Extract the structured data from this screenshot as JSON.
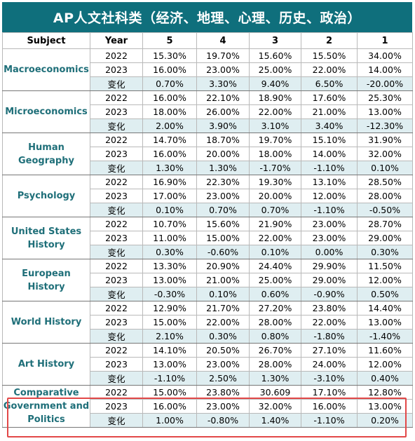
{
  "title": "AP人文社科类（经济、地理、心理、历史、政治）",
  "header": {
    "subject": "Subject",
    "year": "Year",
    "scores": [
      "5",
      "4",
      "3",
      "2",
      "1"
    ]
  },
  "highlight_color": "#e24848",
  "title_bg": "#0f6f7c",
  "subjects": [
    {
      "name": "Macroeconomics",
      "rows": [
        {
          "label": "2022",
          "values": [
            "15.30%",
            "19.70%",
            "15.60%",
            "15.50%",
            "34.00%"
          ]
        },
        {
          "label": "2023",
          "values": [
            "16.00%",
            "23.00%",
            "25.00%",
            "22.00%",
            "14.00%"
          ]
        },
        {
          "label": "变化",
          "values": [
            "0.70%",
            "3.30%",
            "9.40%",
            "6.50%",
            "-20.00%"
          ]
        }
      ]
    },
    {
      "name": "Microeconomics",
      "rows": [
        {
          "label": "2022",
          "values": [
            "16.00%",
            "22.10%",
            "18.90%",
            "17.60%",
            "25.30%"
          ]
        },
        {
          "label": "2023",
          "values": [
            "18.00%",
            "26.00%",
            "22.00%",
            "21.00%",
            "13.00%"
          ]
        },
        {
          "label": "变化",
          "values": [
            "2.00%",
            "3.90%",
            "3.10%",
            "3.40%",
            "-12.30%"
          ]
        }
      ]
    },
    {
      "name": "Human Geography",
      "rows": [
        {
          "label": "2022",
          "values": [
            "14.70%",
            "18.70%",
            "19.70%",
            "15.10%",
            "31.90%"
          ]
        },
        {
          "label": "2023",
          "values": [
            "16.00%",
            "20.00%",
            "18.00%",
            "14.00%",
            "32.00%"
          ]
        },
        {
          "label": "变化",
          "values": [
            "1.30%",
            "1.30%",
            "-1.70%",
            "-1.10%",
            "0.10%"
          ]
        }
      ]
    },
    {
      "name": "Psychology",
      "rows": [
        {
          "label": "2022",
          "values": [
            "16.90%",
            "22.30%",
            "19.30%",
            "13.10%",
            "28.50%"
          ]
        },
        {
          "label": "2023",
          "values": [
            "17.00%",
            "23.00%",
            "20.00%",
            "12.00%",
            "28.00%"
          ]
        },
        {
          "label": "变化",
          "values": [
            "0.10%",
            "0.70%",
            "0.70%",
            "-1.10%",
            "-0.50%"
          ]
        }
      ]
    },
    {
      "name": "United States History",
      "rows": [
        {
          "label": "2022",
          "values": [
            "10.70%",
            "15.60%",
            "21.90%",
            "23.00%",
            "28.70%"
          ]
        },
        {
          "label": "2023",
          "values": [
            "11.00%",
            "15.00%",
            "22.00%",
            "23.00%",
            "29.00%"
          ]
        },
        {
          "label": "变化",
          "values": [
            "0.30%",
            "-0.60%",
            "0.10%",
            "0.00%",
            "0.30%"
          ]
        }
      ]
    },
    {
      "name": "European History",
      "rows": [
        {
          "label": "2022",
          "values": [
            "13.30%",
            "20.90%",
            "24.40%",
            "29.90%",
            "11.50%"
          ]
        },
        {
          "label": "2023",
          "values": [
            "13.00%",
            "21.00%",
            "25.00%",
            "29.00%",
            "12.00%"
          ]
        },
        {
          "label": "变化",
          "values": [
            "-0.30%",
            "0.10%",
            "0.60%",
            "-0.90%",
            "0.50%"
          ]
        }
      ]
    },
    {
      "name": "World History",
      "rows": [
        {
          "label": "2022",
          "values": [
            "12.90%",
            "21.70%",
            "27.20%",
            "23.80%",
            "14.40%"
          ]
        },
        {
          "label": "2023",
          "values": [
            "15.00%",
            "22.00%",
            "28.00%",
            "22.00%",
            "13.00%"
          ]
        },
        {
          "label": "变化",
          "values": [
            "2.10%",
            "0.30%",
            "0.80%",
            "-1.80%",
            "-1.40%"
          ]
        }
      ]
    },
    {
      "name": "Art History",
      "rows": [
        {
          "label": "2022",
          "values": [
            "14.10%",
            "20.50%",
            "26.70%",
            "27.10%",
            "11.60%"
          ]
        },
        {
          "label": "2023",
          "values": [
            "13.00%",
            "23.00%",
            "28.00%",
            "24.00%",
            "12.00%"
          ]
        },
        {
          "label": "变化",
          "values": [
            "-1.10%",
            "2.50%",
            "1.30%",
            "-3.10%",
            "0.40%"
          ]
        }
      ]
    },
    {
      "name": "Comparative Government and Politics",
      "rows": [
        {
          "label": "2022",
          "values": [
            "15.00%",
            "23.80%",
            "30.609",
            "17.10%",
            "12.80%"
          ]
        },
        {
          "label": "2023",
          "values": [
            "16.00%",
            "23.00%",
            "32.00%",
            "16.00%",
            "13.00%"
          ]
        },
        {
          "label": "变化",
          "values": [
            "1.00%",
            "-0.80%",
            "1.40%",
            "-1.10%",
            "0.20%"
          ]
        }
      ]
    }
  ]
}
